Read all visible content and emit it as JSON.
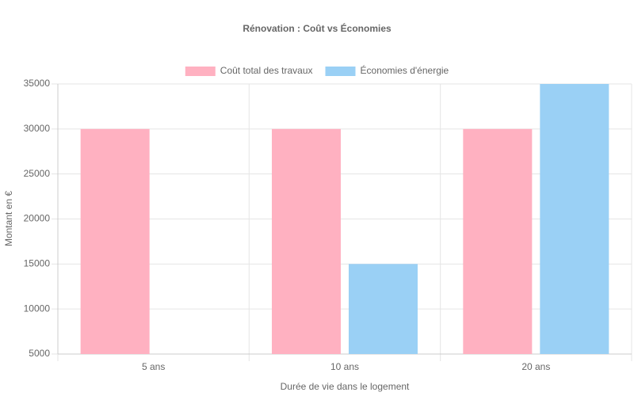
{
  "chart_data": {
    "type": "bar",
    "title": "Rénovation : Coût vs Économies",
    "x_label": "Durée de vie dans le logement",
    "y_label": "Montant en €",
    "categories": [
      "5 ans",
      "10 ans",
      "20 ans"
    ],
    "series": [
      {
        "name": "Coût total des travaux",
        "color": "#ffb1c1",
        "border": "#ff6384",
        "values": [
          30000,
          30000,
          30000
        ]
      },
      {
        "name": "Économies d'énergie",
        "color": "#9ad0f5",
        "border": "#36a2eb",
        "values": [
          5000,
          15000,
          35000
        ]
      }
    ],
    "ylim": [
      5000,
      35000
    ],
    "yticks": [
      5000,
      10000,
      15000,
      20000,
      25000,
      30000,
      35000
    ],
    "grid": true,
    "legend": "top"
  }
}
